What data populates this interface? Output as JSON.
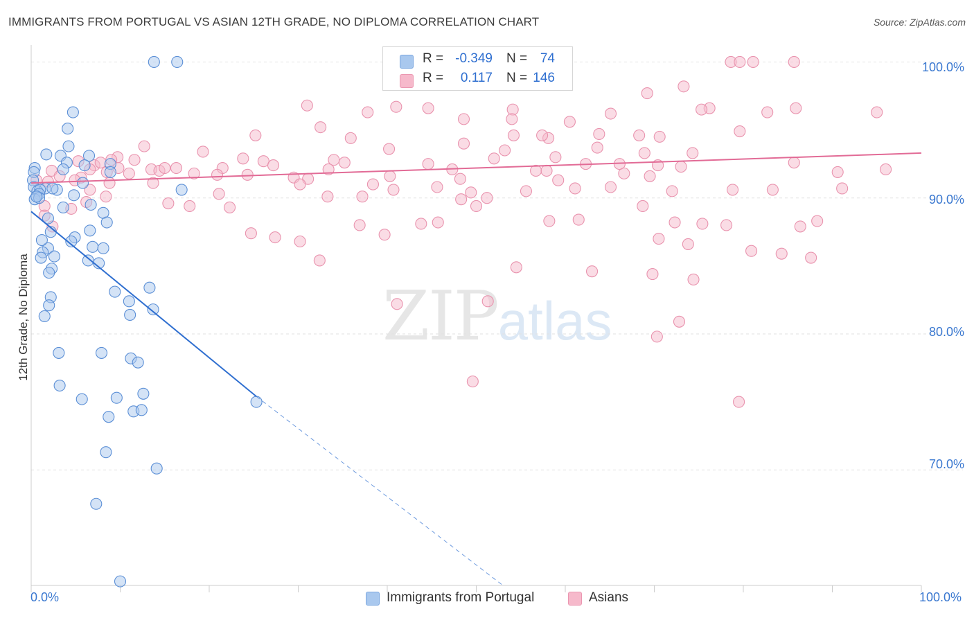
{
  "title": "IMMIGRANTS FROM PORTUGAL VS ASIAN 12TH GRADE, NO DIPLOMA CORRELATION CHART",
  "source": "Source: ZipAtlas.com",
  "watermark": {
    "zip": "ZIP",
    "atlas": "atlas"
  },
  "legend": {
    "rows": [
      {
        "r_label": "R =",
        "r_value": "-0.349",
        "n_label": "N =",
        "n_value": "74",
        "color": "#a9c8ee"
      },
      {
        "r_label": "R =",
        "r_value": "0.117",
        "n_label": "N =",
        "n_value": "146",
        "color": "#f6b9cb"
      }
    ]
  },
  "bottom_legend": [
    {
      "label": "Immigrants from Portugal",
      "color": "#a9c8ee"
    },
    {
      "label": "Asians",
      "color": "#f6b9cb"
    }
  ],
  "colors": {
    "blue_fill": "#a9c8ee",
    "blue_stroke": "#5b8fd6",
    "blue_line": "#2f6fd0",
    "pink_fill": "#f6b9cb",
    "pink_stroke": "#e993ae",
    "pink_line": "#e26b96",
    "tick_text": "#3a78d0",
    "grid": "#e2e2e2"
  },
  "chart_data": {
    "type": "scatter",
    "title": "IMMIGRANTS FROM PORTUGAL VS ASIAN 12TH GRADE, NO DIPLOMA CORRELATION CHART",
    "xlabel": "",
    "ylabel": "12th Grade, No Diploma",
    "xlim": [
      0,
      100
    ],
    "ylim": [
      61.5,
      101.5
    ],
    "x_tick_labels": [
      "0.0%",
      "100.0%"
    ],
    "y_ticks": [
      {
        "value": 70,
        "label": "70.0%"
      },
      {
        "value": 80,
        "label": "80.0%"
      },
      {
        "value": 90,
        "label": "90.0%"
      },
      {
        "value": 100,
        "label": "100.0%"
      }
    ],
    "grid": true,
    "legend_position": "top-center",
    "series": [
      {
        "name": "Immigrants from Portugal",
        "R": -0.349,
        "N": 74,
        "trend": {
          "x0": 0,
          "y0": 89.0,
          "x1": 25.3,
          "y1": 75.4,
          "dash_x1": 53.0,
          "dash_y1": 61.5
        },
        "points": [
          [
            13.8,
            100.0
          ],
          [
            16.4,
            100.0
          ],
          [
            4.7,
            96.3
          ],
          [
            4.1,
            95.1
          ],
          [
            4.2,
            93.8
          ],
          [
            1.7,
            93.2
          ],
          [
            3.3,
            93.1
          ],
          [
            6.5,
            93.1
          ],
          [
            4.0,
            92.6
          ],
          [
            6.0,
            92.4
          ],
          [
            0.4,
            92.2
          ],
          [
            8.9,
            92.5
          ],
          [
            0.3,
            91.9
          ],
          [
            3.6,
            92.1
          ],
          [
            8.9,
            91.9
          ],
          [
            0.2,
            91.3
          ],
          [
            5.8,
            91.1
          ],
          [
            0.3,
            90.8
          ],
          [
            1.6,
            90.7
          ],
          [
            2.9,
            90.6
          ],
          [
            0.7,
            90.5
          ],
          [
            1.0,
            90.6
          ],
          [
            16.9,
            90.6
          ],
          [
            0.9,
            90.3
          ],
          [
            4.8,
            90.2
          ],
          [
            0.6,
            90.1
          ],
          [
            0.4,
            89.9
          ],
          [
            0.9,
            90.0
          ],
          [
            0.6,
            90.1
          ],
          [
            3.6,
            89.3
          ],
          [
            6.7,
            89.5
          ],
          [
            8.1,
            88.9
          ],
          [
            1.9,
            88.5
          ],
          [
            8.5,
            88.2
          ],
          [
            2.2,
            87.5
          ],
          [
            6.6,
            87.6
          ],
          [
            4.9,
            87.1
          ],
          [
            4.5,
            86.8
          ],
          [
            1.9,
            86.3
          ],
          [
            6.9,
            86.4
          ],
          [
            8.1,
            86.3
          ],
          [
            1.3,
            86.0
          ],
          [
            2.6,
            85.7
          ],
          [
            1.1,
            85.6
          ],
          [
            6.4,
            85.4
          ],
          [
            7.6,
            85.2
          ],
          [
            2.3,
            84.8
          ],
          [
            2.0,
            84.5
          ],
          [
            13.3,
            83.4
          ],
          [
            9.4,
            83.1
          ],
          [
            2.2,
            82.7
          ],
          [
            11.0,
            82.4
          ],
          [
            2.0,
            82.1
          ],
          [
            13.7,
            81.8
          ],
          [
            1.5,
            81.3
          ],
          [
            11.1,
            81.4
          ],
          [
            3.1,
            78.6
          ],
          [
            7.9,
            78.6
          ],
          [
            11.2,
            78.2
          ],
          [
            12.0,
            77.9
          ],
          [
            3.2,
            76.2
          ],
          [
            12.6,
            75.6
          ],
          [
            5.7,
            75.2
          ],
          [
            9.6,
            75.3
          ],
          [
            25.3,
            75.0
          ],
          [
            11.5,
            74.3
          ],
          [
            12.4,
            74.4
          ],
          [
            8.7,
            73.9
          ],
          [
            8.4,
            71.3
          ],
          [
            14.1,
            70.1
          ],
          [
            7.3,
            67.5
          ],
          [
            10.0,
            61.8
          ],
          [
            2.4,
            90.7
          ],
          [
            1.2,
            86.9
          ]
        ]
      },
      {
        "name": "Asians",
        "R": 0.117,
        "N": 146,
        "trend": {
          "x0": 0,
          "y0": 91.1,
          "x1": 100,
          "y1": 93.3
        },
        "points": [
          [
            78.6,
            100.0
          ],
          [
            79.6,
            100.0
          ],
          [
            81.1,
            100.0
          ],
          [
            85.7,
            100.0
          ],
          [
            56.7,
            98.7
          ],
          [
            73.3,
            98.2
          ],
          [
            69.2,
            97.7
          ],
          [
            31.0,
            96.8
          ],
          [
            41.0,
            96.7
          ],
          [
            44.6,
            96.6
          ],
          [
            54.1,
            96.5
          ],
          [
            76.2,
            96.6
          ],
          [
            75.3,
            96.5
          ],
          [
            85.9,
            96.6
          ],
          [
            65.1,
            96.2
          ],
          [
            82.7,
            96.3
          ],
          [
            95.0,
            96.3
          ],
          [
            37.8,
            96.3
          ],
          [
            48.6,
            95.8
          ],
          [
            54.0,
            95.8
          ],
          [
            60.5,
            95.6
          ],
          [
            54.2,
            94.6
          ],
          [
            58.1,
            94.4
          ],
          [
            63.8,
            94.7
          ],
          [
            32.5,
            95.2
          ],
          [
            25.2,
            94.6
          ],
          [
            35.9,
            94.4
          ],
          [
            57.4,
            94.6
          ],
          [
            68.3,
            94.6
          ],
          [
            70.6,
            94.5
          ],
          [
            79.6,
            94.9
          ],
          [
            48.6,
            94.0
          ],
          [
            12.7,
            93.8
          ],
          [
            19.3,
            93.4
          ],
          [
            40.2,
            93.6
          ],
          [
            68.9,
            93.3
          ],
          [
            74.3,
            93.3
          ],
          [
            53.2,
            93.5
          ],
          [
            58.9,
            93.0
          ],
          [
            9.7,
            93.0
          ],
          [
            11.6,
            92.8
          ],
          [
            26.1,
            92.7
          ],
          [
            34.0,
            92.8
          ],
          [
            44.6,
            92.5
          ],
          [
            62.3,
            92.5
          ],
          [
            66.1,
            92.5
          ],
          [
            5.3,
            92.7
          ],
          [
            7.1,
            92.4
          ],
          [
            13.5,
            92.1
          ],
          [
            16.3,
            92.2
          ],
          [
            21.5,
            92.2
          ],
          [
            2.3,
            92.0
          ],
          [
            6.6,
            92.1
          ],
          [
            9.8,
            92.2
          ],
          [
            14.4,
            92.0
          ],
          [
            27.2,
            92.4
          ],
          [
            33.4,
            92.1
          ],
          [
            47.3,
            92.1
          ],
          [
            56.7,
            92.0
          ],
          [
            70.4,
            92.4
          ],
          [
            73.0,
            92.3
          ],
          [
            18.3,
            91.8
          ],
          [
            20.9,
            91.7
          ],
          [
            24.3,
            91.7
          ],
          [
            29.5,
            91.5
          ],
          [
            31.1,
            91.4
          ],
          [
            40.3,
            91.6
          ],
          [
            48.2,
            91.4
          ],
          [
            59.2,
            91.3
          ],
          [
            3.2,
            91.6
          ],
          [
            5.6,
            91.5
          ],
          [
            4.9,
            91.3
          ],
          [
            1.9,
            91.2
          ],
          [
            0.6,
            91.3
          ],
          [
            13.7,
            91.1
          ],
          [
            8.8,
            91.1
          ],
          [
            30.2,
            91.0
          ],
          [
            40.7,
            90.6
          ],
          [
            49.4,
            90.4
          ],
          [
            55.6,
            90.5
          ],
          [
            61.1,
            90.7
          ],
          [
            65.1,
            90.8
          ],
          [
            72.0,
            90.5
          ],
          [
            78.8,
            90.6
          ],
          [
            83.3,
            90.6
          ],
          [
            91.1,
            90.7
          ],
          [
            6.6,
            90.6
          ],
          [
            21.1,
            90.3
          ],
          [
            33.3,
            90.1
          ],
          [
            37.2,
            90.1
          ],
          [
            48.3,
            89.9
          ],
          [
            51.2,
            90.0
          ],
          [
            15.4,
            89.6
          ],
          [
            17.8,
            89.4
          ],
          [
            22.3,
            89.3
          ],
          [
            50.0,
            89.4
          ],
          [
            1.5,
            89.4
          ],
          [
            4.5,
            89.2
          ],
          [
            68.7,
            89.4
          ],
          [
            58.2,
            88.3
          ],
          [
            61.5,
            88.4
          ],
          [
            72.3,
            88.2
          ],
          [
            75.4,
            88.1
          ],
          [
            78.1,
            88.0
          ],
          [
            88.3,
            88.3
          ],
          [
            86.4,
            87.9
          ],
          [
            45.7,
            88.2
          ],
          [
            43.8,
            88.1
          ],
          [
            36.9,
            88.0
          ],
          [
            24.7,
            87.4
          ],
          [
            27.4,
            87.1
          ],
          [
            39.7,
            87.3
          ],
          [
            30.2,
            86.8
          ],
          [
            70.5,
            87.0
          ],
          [
            73.8,
            86.6
          ],
          [
            80.9,
            86.1
          ],
          [
            84.3,
            85.9
          ],
          [
            87.6,
            85.6
          ],
          [
            32.4,
            85.4
          ],
          [
            54.5,
            84.9
          ],
          [
            63.0,
            84.6
          ],
          [
            69.8,
            84.4
          ],
          [
            74.4,
            84.0
          ],
          [
            51.3,
            82.4
          ],
          [
            41.1,
            82.2
          ],
          [
            72.8,
            80.9
          ],
          [
            70.3,
            79.8
          ],
          [
            49.6,
            76.5
          ],
          [
            79.5,
            75.0
          ],
          [
            11.0,
            91.8
          ],
          [
            23.8,
            92.9
          ],
          [
            35.2,
            92.6
          ],
          [
            9.0,
            92.8
          ],
          [
            7.8,
            92.6
          ],
          [
            15.0,
            92.2
          ],
          [
            8.5,
            91.9
          ],
          [
            8.4,
            90.1
          ],
          [
            6.2,
            89.7
          ],
          [
            1.5,
            88.7
          ],
          [
            2.4,
            87.9
          ],
          [
            38.4,
            91.0
          ],
          [
            45.6,
            90.8
          ],
          [
            52.0,
            92.9
          ],
          [
            57.9,
            92.0
          ],
          [
            63.6,
            93.7
          ],
          [
            66.6,
            91.8
          ],
          [
            69.5,
            91.6
          ],
          [
            85.7,
            92.6
          ],
          [
            90.6,
            91.9
          ],
          [
            96.0,
            92.1
          ]
        ]
      }
    ]
  }
}
